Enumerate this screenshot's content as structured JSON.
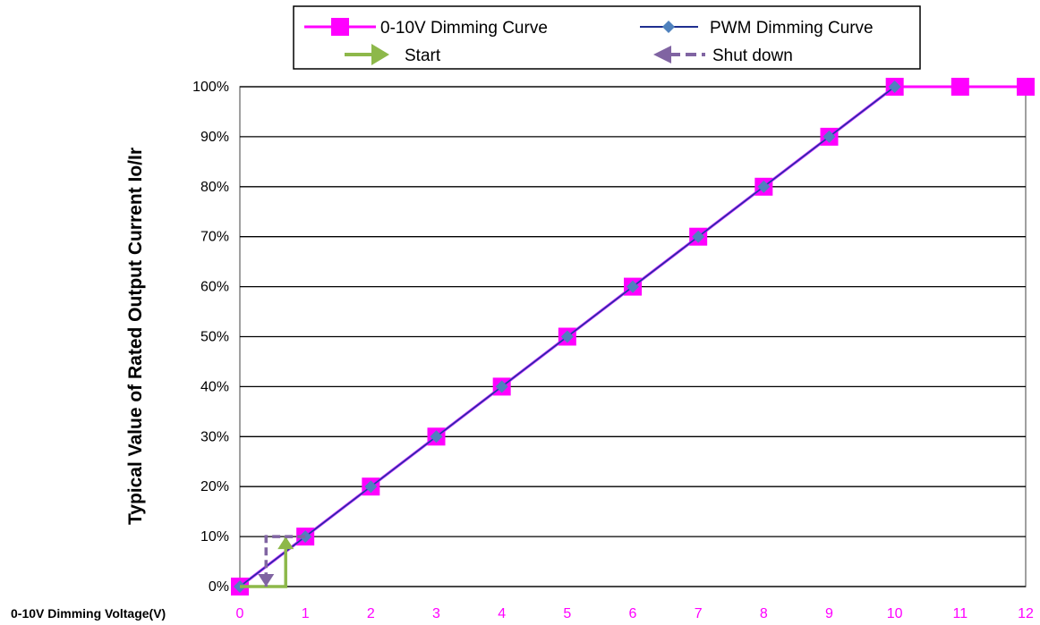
{
  "chart_data": {
    "type": "line",
    "xlabel": "0-10V Dimming Voltage(V)",
    "ylabel": "Typical Value of Rated Output Current Io/Ir",
    "xlim": [
      0,
      12
    ],
    "ylim": [
      0,
      100
    ],
    "x_ticks": [
      "0",
      "1",
      "2",
      "3",
      "4",
      "5",
      "6",
      "7",
      "8",
      "9",
      "10",
      "11",
      "12"
    ],
    "y_ticks": [
      "0%",
      "10%",
      "20%",
      "30%",
      "40%",
      "50%",
      "60%",
      "70%",
      "80%",
      "90%",
      "100%"
    ],
    "grid": "horizontal",
    "legend_position": "top",
    "series": [
      {
        "name": "0-10V Dimming Curve",
        "color": "#ff00ff",
        "marker": "square",
        "x": [
          0,
          1,
          2,
          3,
          4,
          5,
          6,
          7,
          8,
          9,
          10,
          11,
          12
        ],
        "y": [
          0,
          10,
          20,
          30,
          40,
          50,
          60,
          70,
          80,
          90,
          100,
          100,
          100
        ]
      },
      {
        "name": "PWM Dimming Curve",
        "color": "#1f2f8f",
        "marker": "diamond",
        "x": [
          0,
          1,
          2,
          3,
          4,
          5,
          6,
          7,
          8,
          9,
          10
        ],
        "y": [
          0,
          10,
          20,
          30,
          40,
          50,
          60,
          70,
          80,
          90,
          100
        ]
      }
    ],
    "annotations": [
      {
        "name": "Start",
        "color": "#8db84a",
        "style": "solid",
        "x": [
          0,
          0.7,
          0.7
        ],
        "y": [
          0,
          0,
          10
        ]
      },
      {
        "name": "Shut down",
        "color": "#8064a2",
        "style": "dashed",
        "x": [
          1,
          0.4,
          0.4
        ],
        "y": [
          10,
          10,
          0
        ]
      }
    ],
    "colors": {
      "axis_tick_x": "#ff00ff",
      "grid": "#000000",
      "plot_border": "#808080"
    }
  }
}
